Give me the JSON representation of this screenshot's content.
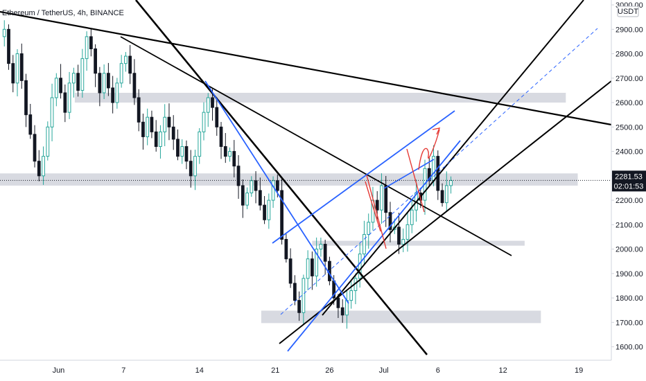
{
  "chart_data": {
    "type": "candlestick",
    "title": "Ethereum / TetherUS, 4h, BINANCE",
    "currency_badge": "USDT",
    "y_ticks": [
      1600,
      1700,
      1800,
      1900,
      2000,
      2100,
      2200,
      2300,
      2400,
      2500,
      2600,
      2700,
      2800,
      2900,
      3000
    ],
    "y_tick_labels": [
      "1600.00",
      "1700.00",
      "1800.00",
      "1900.00",
      "2000.00",
      "2100.00",
      "2200.00",
      "2300.00",
      "2400.00",
      "2500.00",
      "2600.00",
      "2700.00",
      "2800.00",
      "2900.00",
      "3000.00"
    ],
    "ylim": [
      1545,
      3020
    ],
    "x_ticks": [
      "Jun",
      "7",
      "14",
      "21",
      "26",
      "Jul",
      "6",
      "12",
      "19"
    ],
    "x_tick_days": [
      0,
      6,
      13,
      20,
      25,
      30,
      35,
      41,
      48
    ],
    "xlim_days": [
      -5.4,
      51
    ],
    "last_price": "2281.53",
    "countdown": "02:01:53",
    "colors": {
      "up": "#26a69a",
      "down": "#131722",
      "up_fill": "#ffffff",
      "down_fill": "#131722",
      "zone": "#d1d4dc",
      "blue": "#2962ff",
      "red": "#e53935",
      "black": "#000000"
    },
    "series_close": [
      [
        -5.4,
        2870
      ],
      [
        -5.0,
        2900
      ],
      [
        -4.6,
        2760
      ],
      [
        -4.2,
        2680
      ],
      [
        -3.8,
        2800
      ],
      [
        -3.4,
        2690
      ],
      [
        -3.0,
        2550
      ],
      [
        -2.6,
        2470
      ],
      [
        -2.2,
        2360
      ],
      [
        -1.8,
        2300
      ],
      [
        -1.4,
        2380
      ],
      [
        -1.0,
        2500
      ],
      [
        -0.6,
        2620
      ],
      [
        -0.2,
        2700
      ],
      [
        0.2,
        2640
      ],
      [
        0.6,
        2560
      ],
      [
        1.0,
        2680
      ],
      [
        1.4,
        2720
      ],
      [
        1.8,
        2650
      ],
      [
        2.2,
        2780
      ],
      [
        2.6,
        2870
      ],
      [
        3.0,
        2820
      ],
      [
        3.4,
        2720
      ],
      [
        3.8,
        2640
      ],
      [
        4.2,
        2720
      ],
      [
        4.6,
        2660
      ],
      [
        5.0,
        2600
      ],
      [
        5.4,
        2680
      ],
      [
        5.8,
        2760
      ],
      [
        6.2,
        2790
      ],
      [
        6.6,
        2720
      ],
      [
        7.0,
        2620
      ],
      [
        7.4,
        2520
      ],
      [
        7.8,
        2460
      ],
      [
        8.2,
        2540
      ],
      [
        8.6,
        2480
      ],
      [
        9.0,
        2420
      ],
      [
        9.4,
        2480
      ],
      [
        9.8,
        2540
      ],
      [
        10.2,
        2500
      ],
      [
        10.6,
        2450
      ],
      [
        11.0,
        2380
      ],
      [
        11.4,
        2420
      ],
      [
        11.8,
        2360
      ],
      [
        12.2,
        2300
      ],
      [
        12.6,
        2380
      ],
      [
        13.0,
        2480
      ],
      [
        13.4,
        2560
      ],
      [
        13.8,
        2620
      ],
      [
        14.2,
        2580
      ],
      [
        14.6,
        2500
      ],
      [
        15.0,
        2420
      ],
      [
        15.4,
        2380
      ],
      [
        15.8,
        2400
      ],
      [
        16.2,
        2340
      ],
      [
        16.6,
        2260
      ],
      [
        17.0,
        2180
      ],
      [
        17.4,
        2230
      ],
      [
        17.8,
        2280
      ],
      [
        18.2,
        2240
      ],
      [
        18.6,
        2180
      ],
      [
        19.0,
        2120
      ],
      [
        19.4,
        2200
      ],
      [
        19.8,
        2280
      ],
      [
        20.2,
        2240
      ],
      [
        20.6,
        2040
      ],
      [
        21.0,
        1960
      ],
      [
        21.4,
        1860
      ],
      [
        21.8,
        1790
      ],
      [
        22.2,
        1740
      ],
      [
        22.6,
        1880
      ],
      [
        23.0,
        1960
      ],
      [
        23.4,
        1890
      ],
      [
        23.8,
        2000
      ],
      [
        24.2,
        2020
      ],
      [
        24.6,
        1950
      ],
      [
        25.0,
        1870
      ],
      [
        25.4,
        1800
      ],
      [
        25.8,
        1760
      ],
      [
        26.2,
        1730
      ],
      [
        26.6,
        1790
      ],
      [
        27.0,
        1830
      ],
      [
        27.4,
        1880
      ],
      [
        27.8,
        1980
      ],
      [
        28.2,
        2060
      ],
      [
        28.6,
        2110
      ],
      [
        29.0,
        2200
      ],
      [
        29.4,
        2160
      ],
      [
        29.8,
        2260
      ],
      [
        30.2,
        2150
      ],
      [
        30.6,
        2080
      ],
      [
        31.0,
        2090
      ],
      [
        31.4,
        2020
      ],
      [
        31.8,
        2040
      ],
      [
        32.2,
        2100
      ],
      [
        32.6,
        2160
      ],
      [
        33.0,
        2230
      ],
      [
        33.4,
        2200
      ],
      [
        33.8,
        2330
      ],
      [
        34.2,
        2280
      ],
      [
        34.6,
        2380
      ],
      [
        35.0,
        2240
      ],
      [
        35.4,
        2190
      ],
      [
        35.8,
        2260
      ],
      [
        36.2,
        2281
      ]
    ],
    "horizontal_zones": [
      {
        "from_day": 1.5,
        "to_day": 46.8,
        "low": 2600,
        "high": 2640
      },
      {
        "from_day": -5.4,
        "to_day": 47.9,
        "low": 2260,
        "high": 2310
      },
      {
        "from_day": 23.4,
        "to_day": 43.0,
        "low": 2014,
        "high": 2034
      },
      {
        "from_day": 18.7,
        "to_day": 44.5,
        "low": 1697,
        "high": 1748
      }
    ],
    "annotation_text": [
      "Jun",
      "7",
      "14",
      "21",
      "26",
      "Jul",
      "6",
      "12",
      "19"
    ]
  }
}
